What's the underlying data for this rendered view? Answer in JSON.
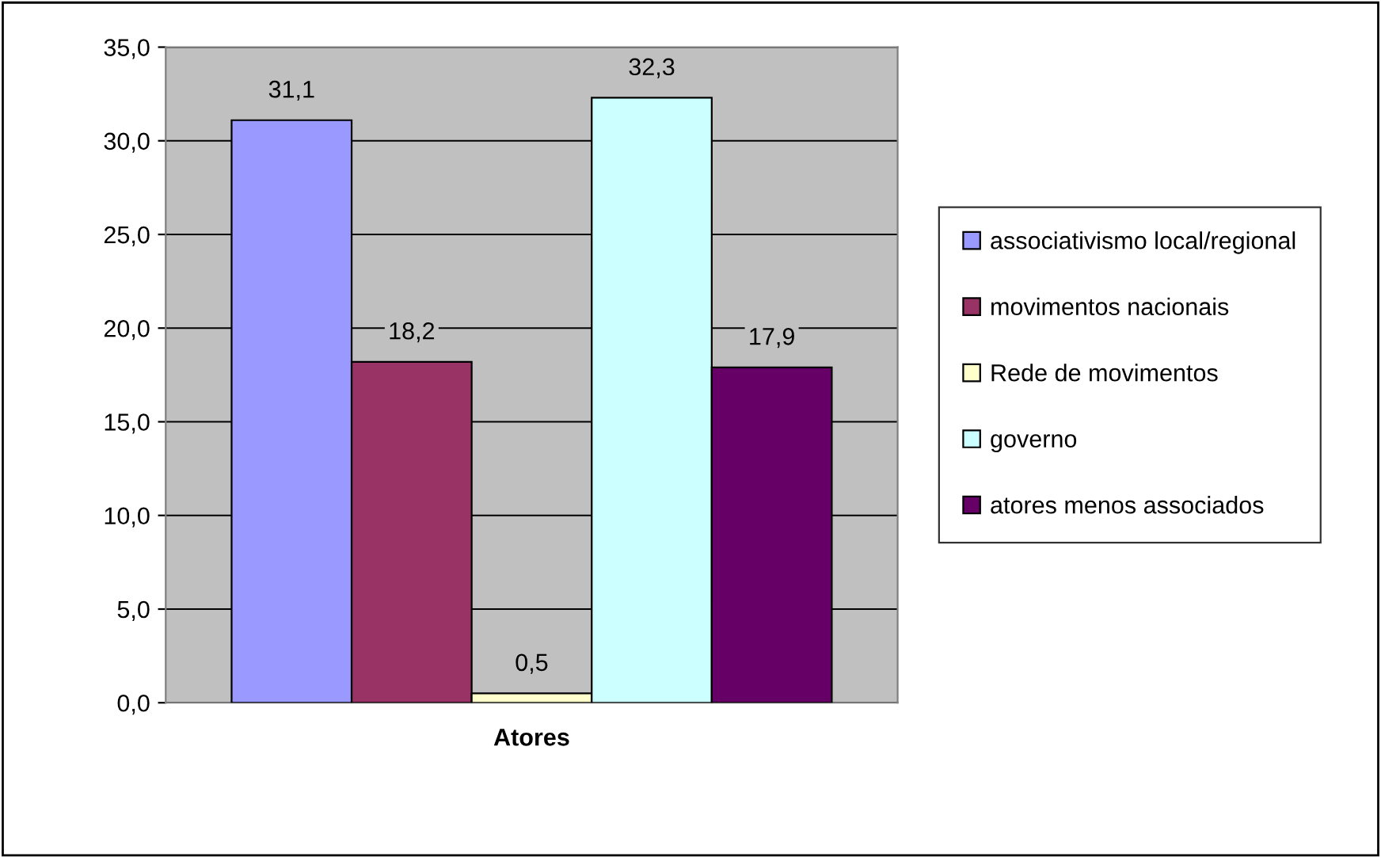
{
  "chart_data": {
    "type": "bar",
    "xlabel": "Atores",
    "categories": [
      null
    ],
    "series": [
      {
        "name": "associativismo local/regional",
        "color": "#9999ff",
        "values": [
          31.1
        ],
        "value_labels": [
          "31,1"
        ]
      },
      {
        "name": "movimentos nacionais",
        "color": "#993366",
        "values": [
          18.2
        ],
        "value_labels": [
          "18,2"
        ]
      },
      {
        "name": "Rede de movimentos",
        "color": "#ffffcc",
        "values": [
          0.5
        ],
        "value_labels": [
          "0,5"
        ]
      },
      {
        "name": "governo",
        "color": "#ccffff",
        "values": [
          32.3
        ],
        "value_labels": [
          "32,3"
        ]
      },
      {
        "name": "atores menos associados",
        "color": "#660066",
        "values": [
          17.9
        ],
        "value_labels": [
          "17,9"
        ]
      }
    ],
    "ylim": [
      0,
      35
    ],
    "yticks": [
      {
        "value": 0,
        "label": "0,0"
      },
      {
        "value": 5,
        "label": "5,0"
      },
      {
        "value": 10,
        "label": "10,0"
      },
      {
        "value": 15,
        "label": "15,0"
      },
      {
        "value": 20,
        "label": "20,0"
      },
      {
        "value": 25,
        "label": "25,0"
      },
      {
        "value": 30,
        "label": "30,0"
      },
      {
        "value": 35,
        "label": "35,0"
      }
    ],
    "grid": "y",
    "legend": "right"
  }
}
